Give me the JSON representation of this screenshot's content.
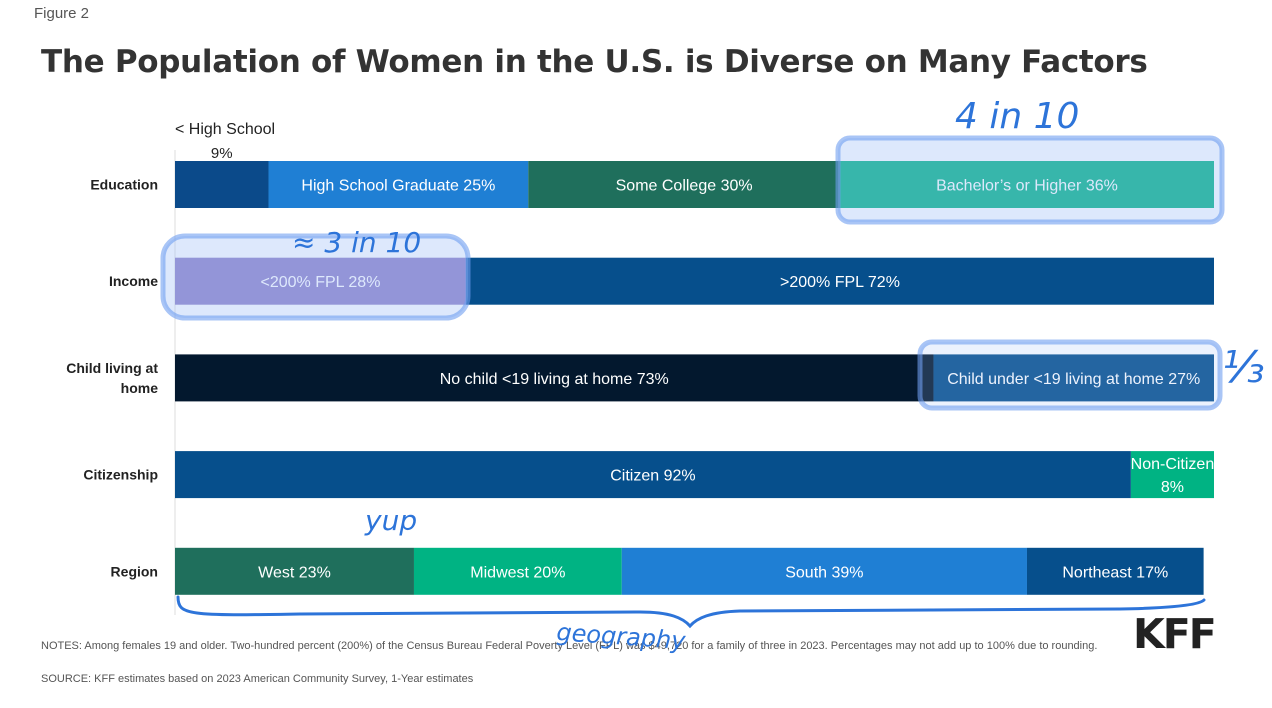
{
  "figure_label": "Figure 2",
  "title": "The Population of Women in the U.S. is Diverse on Many Factors",
  "notes": "NOTES: Among females 19 and older. Two-hundred percent (200%) of the Census Bureau Federal Poverty Level (FPL) was $49,720 for a family of three in 2023. Percentages may not add up to 100% due to rounding.",
  "source": "SOURCE: KFF estimates based on 2023 American Community Survey, 1-Year estimates",
  "logo": "KFF",
  "annotations": [
    "4 in 10",
    "≈ 3 in 10",
    "⅓",
    "yup",
    "geography"
  ],
  "chart_data": {
    "type": "bar",
    "orientation": "horizontal",
    "stacked": true,
    "categories": [
      "Education",
      "Income",
      "Child living at home",
      "Citizenship",
      "Region"
    ],
    "xlim": [
      0,
      100
    ],
    "rows": [
      {
        "category": "Education",
        "segments": [
          {
            "name": "< High School",
            "value": 9,
            "label": "9%",
            "color": "#0b4a8a",
            "outside": true
          },
          {
            "name": "High School Graduate",
            "value": 25,
            "label": "High School Graduate 25%",
            "color": "#1f7fd4"
          },
          {
            "name": "Some College",
            "value": 30,
            "label": "Some College 30%",
            "color": "#1f6f5c"
          },
          {
            "name": "Bachelor’s or Higher",
            "value": 36,
            "label": "Bachelor’s or Higher 36%",
            "color": "#00b383"
          }
        ]
      },
      {
        "category": "Income",
        "segments": [
          {
            "name": "<200% FPL",
            "value": 28,
            "label": "<200% FPL 28%",
            "color": "#8e80c8"
          },
          {
            "name": ">200% FPL",
            "value": 72,
            "label": ">200% FPL 72%",
            "color": "#064f8c"
          }
        ]
      },
      {
        "category": "Child living at home",
        "segments": [
          {
            "name": "No child <19 living at home",
            "value": 73,
            "label": "No child <19 living at home 73%",
            "color": "#03182e"
          },
          {
            "name": "Child under <19 living at home",
            "value": 27,
            "label": "Child under <19 living at home 27%",
            "color": "#064f8c"
          }
        ]
      },
      {
        "category": "Citizenship",
        "segments": [
          {
            "name": "Citizen",
            "value": 92,
            "label": "Citizen 92%",
            "color": "#064f8c"
          },
          {
            "name": "Non-Citizen",
            "value": 8,
            "label": "Non-Citizen\n8%",
            "color": "#00b383"
          }
        ]
      },
      {
        "category": "Region",
        "segments": [
          {
            "name": "West",
            "value": 23,
            "label": "West 23%",
            "color": "#1f6f5c"
          },
          {
            "name": "Midwest",
            "value": 20,
            "label": "Midwest 20%",
            "color": "#00b383"
          },
          {
            "name": "South",
            "value": 39,
            "label": "South 39%",
            "color": "#1f7fd4"
          },
          {
            "name": "Northeast",
            "value": 17,
            "label": "Northeast 17%",
            "color": "#064f8c"
          }
        ]
      }
    ]
  }
}
